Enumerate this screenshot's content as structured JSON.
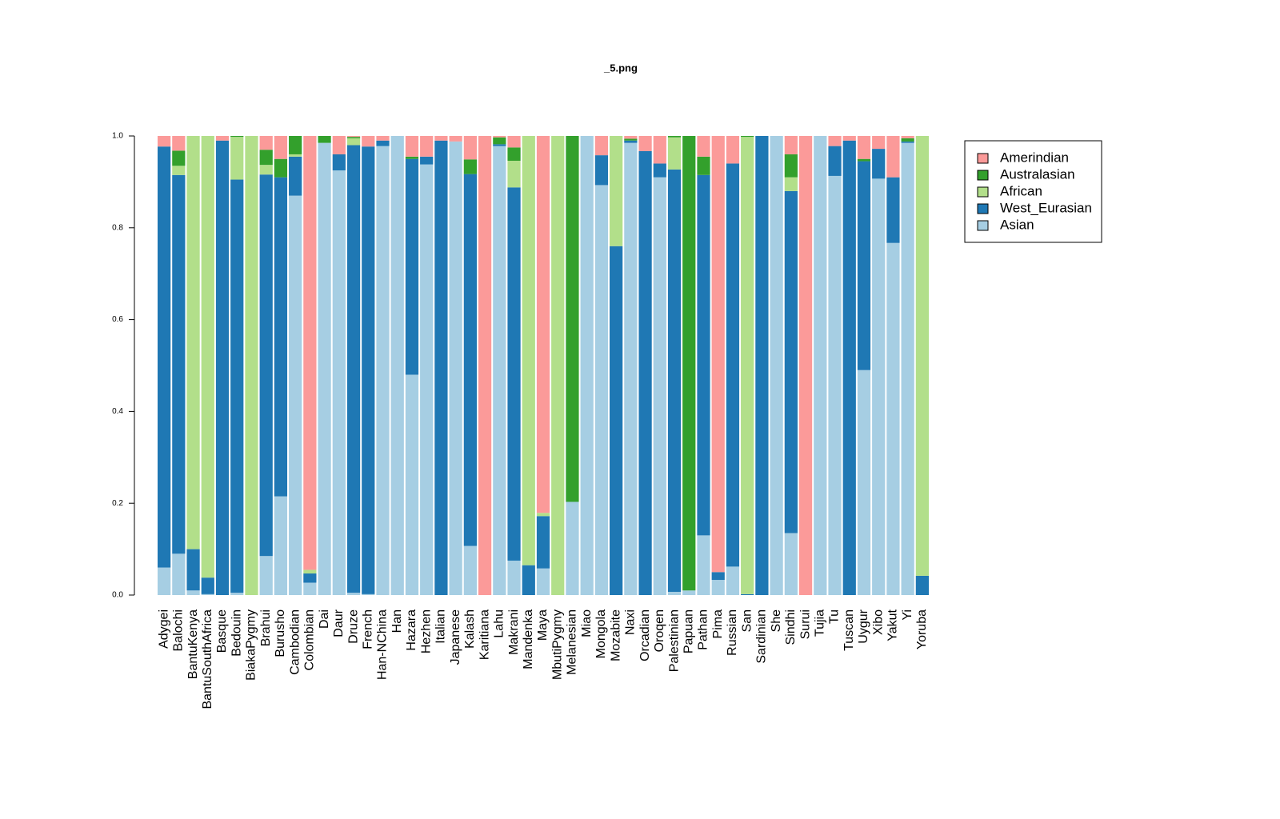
{
  "chart_data": {
    "type": "stacked_bar",
    "title": "_5.png",
    "categories": [
      "Adygei",
      "Balochi",
      "BantuKenya",
      "BantuSouthAfrica",
      "Basque",
      "Bedouin",
      "BiakaPygmy",
      "Brahui",
      "Burusho",
      "Cambodian",
      "Colombian",
      "Dai",
      "Daur",
      "Druze",
      "French",
      "Han-NChina",
      "Han",
      "Hazara",
      "Hezhen",
      "Italian",
      "Japanese",
      "Kalash",
      "Karitiana",
      "Lahu",
      "Makrani",
      "Mandenka",
      "Maya",
      "MbutiPygmy",
      "Melanesian",
      "Miao",
      "Mongola",
      "Mozabite",
      "Naxi",
      "Orcadian",
      "Oroqen",
      "Palestinian",
      "Papuan",
      "Pathan",
      "Pima",
      "Russian",
      "San",
      "Sardinian",
      "She",
      "Sindhi",
      "Surui",
      "Tujia",
      "Tu",
      "Tuscan",
      "Uygur",
      "Xibo",
      "Yakut",
      "Yi",
      "Yoruba"
    ],
    "series": [
      {
        "name": "Asian",
        "color": "#a6cee3",
        "values": [
          0.06,
          0.09,
          0.01,
          0.002,
          0,
          0.005,
          0,
          0.085,
          0.215,
          0.87,
          0.027,
          0.985,
          0.925,
          0.005,
          0.002,
          0.978,
          1,
          0.48,
          0.938,
          0,
          0.988,
          0.107,
          0,
          0.978,
          0.075,
          0,
          0.058,
          0,
          0.203,
          1,
          0.893,
          0,
          0.985,
          0,
          0.91,
          0.007,
          0.01,
          0.13,
          0.033,
          0.062,
          0,
          0,
          1,
          0.135,
          0,
          1,
          0.913,
          0,
          0.49,
          0.907,
          0.767,
          0.985,
          0
        ]
      },
      {
        "name": "West_Eurasian",
        "color": "#1f78b4",
        "values": [
          0.917,
          0.825,
          0.09,
          0.036,
          0.99,
          0.9,
          0,
          0.831,
          0.695,
          0.085,
          0.02,
          0,
          0.035,
          0.975,
          0.975,
          0.012,
          0,
          0.47,
          0.017,
          0.99,
          0,
          0.81,
          0,
          0.004,
          0.813,
          0.065,
          0.114,
          0,
          0,
          0,
          0.065,
          0.76,
          0.005,
          0.967,
          0.03,
          0.92,
          0,
          0.785,
          0.017,
          0.878,
          0.002,
          1,
          0,
          0.745,
          0,
          0,
          0.065,
          0.99,
          0.455,
          0.065,
          0.143,
          0.003,
          0.042
        ]
      },
      {
        "name": "African",
        "color": "#b2df8a",
        "values": [
          0,
          0.02,
          0.9,
          0.962,
          0,
          0.093,
          1,
          0.021,
          0,
          0.005,
          0.008,
          0,
          0,
          0.015,
          0,
          0,
          0,
          0,
          0,
          0,
          0,
          0,
          0,
          0,
          0.058,
          0.935,
          0.007,
          1,
          0,
          0,
          0,
          0.24,
          0,
          0,
          0,
          0.07,
          0,
          0,
          0,
          0,
          0.996,
          0,
          0,
          0.03,
          0,
          0,
          0,
          0,
          0,
          0,
          0,
          0,
          0.958
        ]
      },
      {
        "name": "Australasian",
        "color": "#33a02c",
        "values": [
          0,
          0.033,
          0,
          0,
          0,
          0.002,
          0,
          0.033,
          0.04,
          0.04,
          0,
          0.015,
          0,
          0.003,
          0,
          0,
          0,
          0.005,
          0,
          0,
          0,
          0.032,
          0,
          0.015,
          0.029,
          0,
          0,
          0,
          0.797,
          0,
          0,
          0,
          0.004,
          0,
          0,
          0.003,
          0.99,
          0.04,
          0,
          0,
          0.002,
          0,
          0,
          0.05,
          0,
          0,
          0,
          0,
          0.005,
          0,
          0,
          0.007,
          0
        ]
      },
      {
        "name": "Amerindian",
        "color": "#fb9a99",
        "values": [
          0.023,
          0.032,
          0,
          0,
          0.01,
          0,
          0,
          0.03,
          0.05,
          0,
          0.945,
          0,
          0.04,
          0.002,
          0.023,
          0.01,
          0,
          0.045,
          0.045,
          0.01,
          0.012,
          0.051,
          1,
          0.003,
          0.025,
          0,
          0.821,
          0,
          0,
          0,
          0.042,
          0,
          0.006,
          0.033,
          0.06,
          0,
          0,
          0.045,
          0.95,
          0.06,
          0,
          0,
          0,
          0.04,
          1,
          0,
          0.022,
          0.01,
          0.05,
          0.028,
          0.09,
          0.005,
          0
        ]
      }
    ],
    "ylim": [
      0,
      1
    ],
    "yticks": [
      {
        "value": 0,
        "label": "0.0"
      },
      0.2,
      0.4,
      0.6,
      0.8,
      {
        "value": 1,
        "label": "1.0"
      }
    ],
    "legend": "right"
  }
}
